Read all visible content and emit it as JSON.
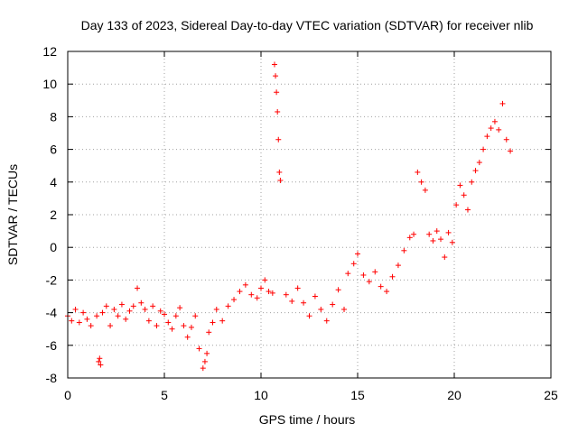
{
  "chart_data": {
    "type": "scatter",
    "title": "Day 133 of 2023, Sidereal Day-to-day VTEC variation (SDTVAR) for receiver nlib",
    "xlabel": "GPS time / hours",
    "ylabel": "SDTVAR / TECUs",
    "xlim": [
      0,
      25
    ],
    "ylim": [
      -8,
      12
    ],
    "xticks": [
      0,
      5,
      10,
      15,
      20,
      25
    ],
    "yticks": [
      -8,
      -6,
      -4,
      -2,
      0,
      2,
      4,
      6,
      8,
      10,
      12
    ],
    "xtick_labels": [
      "0",
      "5",
      "10",
      "15",
      "20",
      "25"
    ],
    "ytick_labels": [
      "-8",
      "-6",
      "-4",
      "-2",
      "0",
      "2",
      "4",
      "6",
      "8",
      "10",
      "12"
    ],
    "grid": true,
    "marker": "+",
    "color": "#ff0000",
    "series": [
      {
        "name": "SDTVAR",
        "x": [
          0.0,
          0.2,
          0.4,
          0.6,
          0.8,
          1.0,
          1.2,
          1.5,
          1.6,
          1.65,
          1.7,
          1.8,
          2.0,
          2.2,
          2.4,
          2.6,
          2.8,
          3.0,
          3.2,
          3.4,
          3.6,
          3.8,
          4.0,
          4.2,
          4.4,
          4.6,
          4.8,
          5.0,
          5.2,
          5.4,
          5.6,
          5.8,
          6.0,
          6.2,
          6.4,
          6.6,
          6.8,
          7.0,
          7.1,
          7.2,
          7.3,
          7.5,
          7.7,
          8.0,
          8.3,
          8.6,
          8.9,
          9.2,
          9.5,
          9.8,
          10.0,
          10.2,
          10.4,
          10.6,
          10.7,
          10.75,
          10.8,
          10.85,
          10.9,
          10.95,
          11.0,
          11.3,
          11.6,
          11.9,
          12.2,
          12.5,
          12.8,
          13.1,
          13.4,
          13.7,
          14.0,
          14.3,
          14.5,
          14.8,
          15.0,
          15.3,
          15.6,
          15.9,
          16.2,
          16.5,
          16.8,
          17.1,
          17.4,
          17.7,
          17.9,
          18.1,
          18.3,
          18.5,
          18.7,
          18.9,
          19.1,
          19.3,
          19.5,
          19.7,
          19.9,
          20.1,
          20.3,
          20.5,
          20.7,
          20.9,
          21.1,
          21.3,
          21.5,
          21.7,
          21.9,
          22.1,
          22.3,
          22.5,
          22.7,
          22.9
        ],
        "y": [
          -4.2,
          -4.5,
          -3.8,
          -4.6,
          -4.0,
          -4.4,
          -4.8,
          -4.2,
          -7.0,
          -6.8,
          -7.2,
          -4.0,
          -3.6,
          -4.8,
          -3.8,
          -4.2,
          -3.5,
          -4.4,
          -3.9,
          -3.6,
          -2.5,
          -3.4,
          -3.8,
          -4.5,
          -3.6,
          -4.8,
          -3.9,
          -4.1,
          -4.6,
          -5.0,
          -4.2,
          -3.7,
          -4.8,
          -5.5,
          -4.9,
          -4.2,
          -6.2,
          -7.4,
          -7.0,
          -6.5,
          -5.2,
          -4.6,
          -3.8,
          -4.5,
          -3.6,
          -3.2,
          -2.7,
          -2.3,
          -2.9,
          -3.1,
          -2.5,
          -2.0,
          -2.7,
          -2.8,
          11.2,
          10.5,
          9.5,
          8.3,
          6.6,
          4.6,
          4.1,
          -2.9,
          -3.3,
          -2.5,
          -3.4,
          -4.2,
          -3.0,
          -3.8,
          -4.5,
          -3.5,
          -2.6,
          -3.8,
          -1.6,
          -1.0,
          -0.4,
          -1.7,
          -2.1,
          -1.5,
          -2.4,
          -2.7,
          -1.8,
          -1.1,
          -0.2,
          0.6,
          0.8,
          4.6,
          4.0,
          3.5,
          0.8,
          0.4,
          1.0,
          0.5,
          -0.6,
          0.9,
          0.3,
          2.6,
          3.8,
          3.2,
          2.3,
          4.0,
          4.7,
          5.2,
          6.0,
          6.8,
          7.3,
          7.7,
          7.2,
          8.8,
          6.6,
          5.9
        ]
      }
    ]
  }
}
